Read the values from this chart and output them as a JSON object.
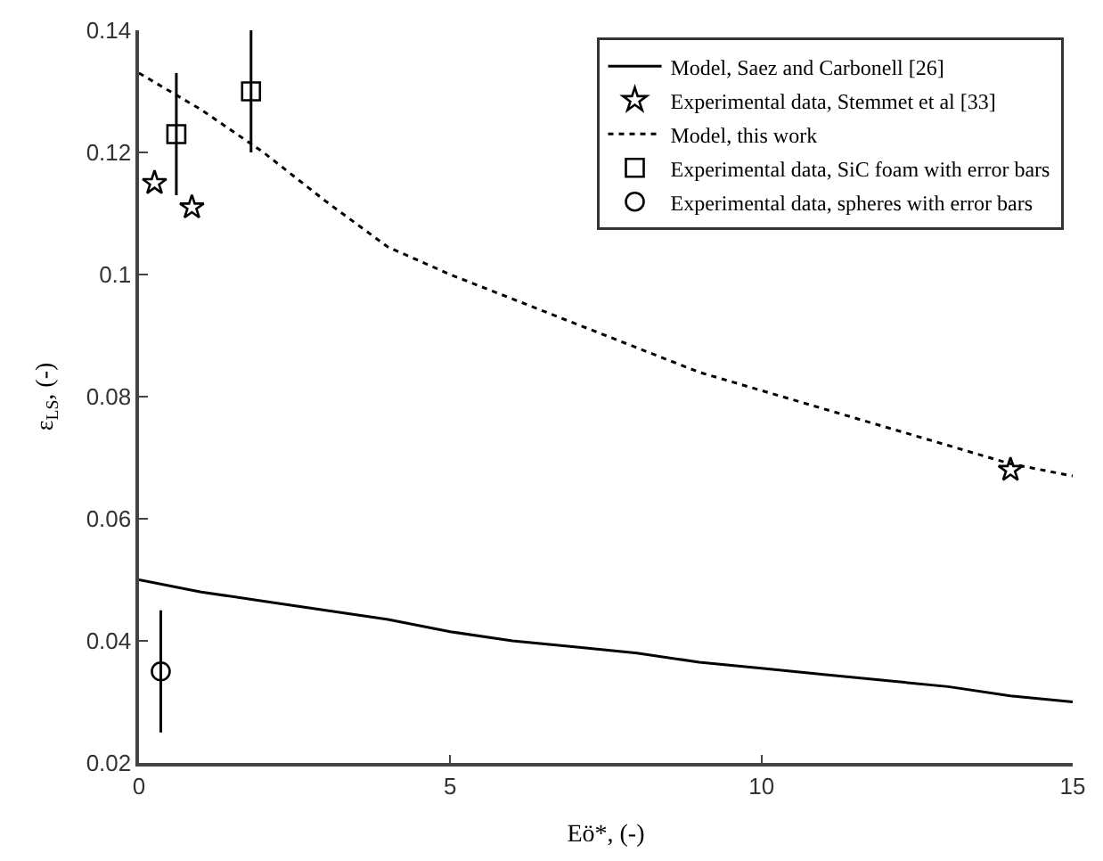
{
  "chart_data": {
    "type": "line",
    "xlabel": "Eö*, (-)",
    "ylabel": "ε$_{LS}$, (-)",
    "xlim": [
      0,
      15
    ],
    "xticks": [
      0,
      5,
      10,
      15
    ],
    "ylim": [
      0.02,
      0.14
    ],
    "yticks": [
      0.02,
      0.04,
      0.06,
      0.08,
      {
        "value": 0.1,
        "label": "0.1"
      },
      0.12,
      0.14
    ],
    "legend": "top right",
    "series": [
      {
        "name": "Model, Saez and Carbonell [26]",
        "line_style": "solid",
        "color": "#000000",
        "x": [
          0,
          1,
          2,
          3,
          4,
          5,
          6,
          7,
          8,
          9,
          10,
          11,
          12,
          13,
          14,
          15
        ],
        "values": [
          0.05,
          0.048,
          0.0465,
          0.045,
          0.0435,
          0.0415,
          0.04,
          0.039,
          0.038,
          0.0365,
          0.0355,
          0.0345,
          0.0335,
          0.0325,
          0.031,
          0.03
        ]
      },
      {
        "name": "Experimental data, Stemmet et al [33]",
        "type": "scatter",
        "marker": "star",
        "color": "#000000",
        "x": [
          0.25,
          0.85,
          14
        ],
        "values": [
          0.115,
          0.111,
          0.068
        ]
      },
      {
        "name": "Model, this work",
        "line_style": "dotted",
        "color": "#000000",
        "x": [
          0,
          1,
          2,
          3,
          4,
          5,
          6,
          7,
          8,
          9,
          10,
          11,
          12,
          13,
          14,
          15
        ],
        "values": [
          0.133,
          0.127,
          0.12,
          0.112,
          0.1045,
          0.1,
          0.096,
          0.092,
          0.088,
          0.084,
          0.081,
          0.078,
          0.075,
          0.072,
          0.069,
          0.067
        ]
      },
      {
        "name": "Experimental data, SiC foam with error bars",
        "type": "scatter",
        "marker": "square",
        "color": "#000000",
        "x": [
          0.6,
          1.8
        ],
        "values": [
          0.123,
          0.13
        ],
        "errors": [
          0.01,
          0.01
        ]
      },
      {
        "name": "Experimental data, spheres with error bars",
        "type": "scatter",
        "marker": "circle",
        "color": "#000000",
        "x": [
          0.35
        ],
        "values": [
          0.035
        ],
        "errors": [
          0.01
        ]
      }
    ]
  }
}
